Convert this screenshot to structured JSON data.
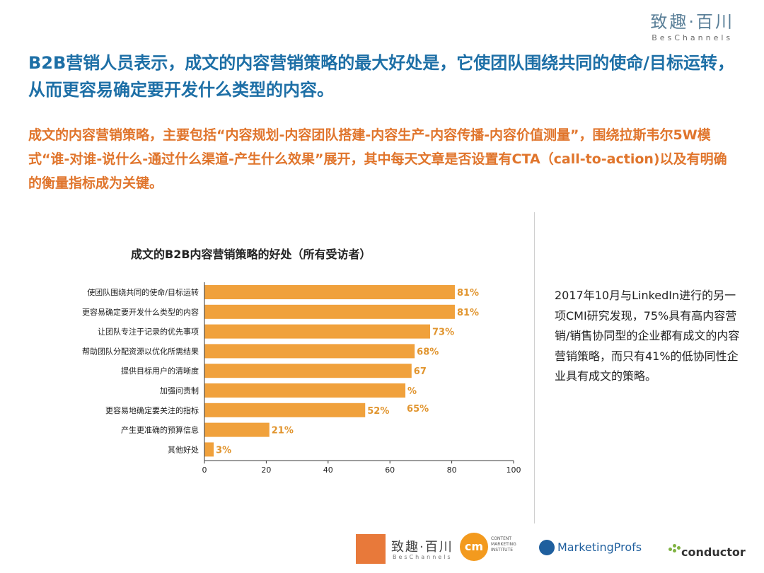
{
  "brand": {
    "name_cn": "致趣·百川",
    "name_en": "BesChannels"
  },
  "headline": "B2B营销人员表示，成文的内容营销策略的最大好处是，它使团队围绕共同的使命/目标运转，从而更容易确定要开发什么类型的内容。",
  "subline": "成文的内容营销策略，主要包括“内容规划-内容团队搭建-内容生产-内容传播-内容价值测量”，围绕拉斯韦尔5W模式“谁-对谁-说什么-通过什么渠道-产生什么效果”展开，其中每天文章是否设置有CTA（call-to-action)以及有明确的衡量指标成为关键。",
  "chart_data": {
    "type": "bar",
    "orientation": "horizontal",
    "title": "成文的B2B内容营销策略的好处（所有受访者）",
    "categories": [
      "使团队围绕共同的使命/目标运转",
      "更容易确定要开发什么类型的内容",
      "让团队专注于记录的优先事项",
      "帮助团队分配资源以优化所需结果",
      "提供目标用户的清晰度",
      "加强问责制",
      "更容易地确定要关注的指标",
      "产生更准确的预算信息",
      "其他好处"
    ],
    "values": [
      81,
      81,
      73,
      68,
      67,
      65,
      52,
      21,
      3
    ],
    "data_labels": [
      "81%",
      "81%",
      "73%",
      "68%",
      "67",
      "%",
      "52%",
      "21%",
      "3%"
    ],
    "extra_annotations": [
      {
        "text": "65%",
        "near_category": "更容易地确定要关注的指标"
      }
    ],
    "xlim": [
      0,
      100
    ],
    "xticks": [
      0,
      20,
      40,
      60,
      80,
      100
    ],
    "bar_color": "#f0a13c",
    "label_color": "#e1952f",
    "grid": false
  },
  "side_note": "2017年10月与LinkedIn进行的另一项CMI研究发现，75%具有高内容营销/销售协同型的企业都有成文的内容营销策略，而只有41%的低协同性企业具有成文的策略。",
  "footer_logos": {
    "beschannels_cn": "致趣·百川",
    "beschannels_en": "BesChannels",
    "cmi_mark": "cm",
    "cmi_text": [
      "CONTENT",
      "MARKETING",
      "INSTITUTE"
    ],
    "marketingprofs": "MarketingProfs",
    "conductor": "conductor"
  },
  "colors": {
    "headline": "#1d6fa6",
    "subline": "#e0752c",
    "bar": "#f0a13c"
  }
}
